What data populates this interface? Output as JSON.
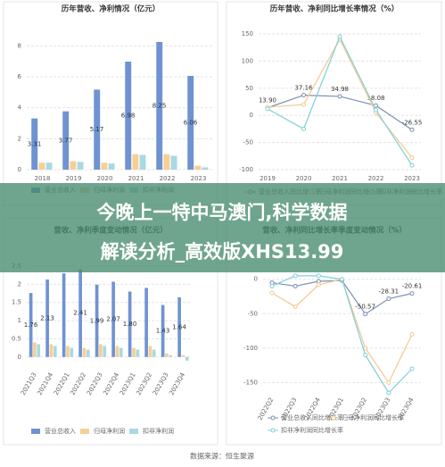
{
  "chart_data": [
    {
      "type": "bar",
      "title": "历年营收、净利情况（亿元）",
      "categories": [
        "2018",
        "2019",
        "2020",
        "2021",
        "2022",
        "2023"
      ],
      "ylim": [
        0,
        9
      ],
      "yticks": [
        0,
        2,
        4,
        6,
        8
      ],
      "grid": true,
      "series": [
        {
          "name": "营业总收入",
          "color": "#6f93d2",
          "values": [
            3.31,
            3.77,
            5.17,
            6.98,
            8.25,
            6.06
          ],
          "value_labels": [
            "3.31",
            "3.77",
            "5.17",
            "6.98",
            "8.25",
            "6.06"
          ]
        },
        {
          "name": "归母净利润",
          "color": "#f6cf95",
          "values": [
            0.45,
            0.55,
            0.45,
            1.0,
            1.0,
            0.25
          ]
        },
        {
          "name": "扣非净利润",
          "color": "#a9d9e2",
          "values": [
            0.45,
            0.5,
            0.4,
            0.95,
            0.9,
            0.15
          ]
        }
      ]
    },
    {
      "type": "line",
      "title": "历年营收、净利同比增长率情况（%）",
      "categories": [
        "2019",
        "2020",
        "2021",
        "2022",
        "2023"
      ],
      "ylim": [
        -100,
        150
      ],
      "yticks": [
        150,
        100,
        50,
        0,
        -50,
        -100
      ],
      "grid": true,
      "series": [
        {
          "name": "营业总收入同比增长率",
          "color": "#7b8fb5",
          "values": [
            13.9,
            37.16,
            34.98,
            18.08,
            -26.55
          ],
          "value_labels": [
            "13.90",
            "37.16",
            "34.98",
            "18.08",
            "-26.55"
          ]
        },
        {
          "name": "归母净利润同比增长率",
          "color": "#f4c98c",
          "values": [
            15,
            20,
            140,
            5,
            -78
          ]
        },
        {
          "name": "扣非净利润同比增长率",
          "color": "#7fcfd8",
          "values": [
            12,
            -25,
            145,
            10,
            -92
          ]
        }
      ]
    },
    {
      "type": "bar",
      "title": "营收、净利季度变动情况（亿元）",
      "categories": [
        "2021Q3",
        "2021Q4",
        "2022Q1",
        "2022Q2",
        "2022Q3",
        "2022Q4",
        "2023Q1",
        "2023Q2",
        "2023Q3",
        "2023Q4"
      ],
      "ylim": [
        -0.3,
        2.5
      ],
      "yticks": [
        0,
        0.5,
        1,
        1.5,
        2,
        2.5
      ],
      "grid": true,
      "series": [
        {
          "name": "营业总收入",
          "color": "#6f93d2",
          "values": [
            1.76,
            2.13,
            2.3,
            2.41,
            1.99,
            2.07,
            1.8,
            1.9,
            1.43,
            1.64
          ],
          "value_labels": [
            "1.76",
            "2.13",
            null,
            "2.41",
            "1.99",
            "2.07",
            "1.80",
            null,
            "1.43",
            "1.64"
          ]
        },
        {
          "name": "归母净利润",
          "color": "#f6cf95",
          "values": [
            0.4,
            0.35,
            0.3,
            0.25,
            0.35,
            0.3,
            0.25,
            0.3,
            0.1,
            0.05
          ]
        },
        {
          "name": "扣非净利润",
          "color": "#a9d9e2",
          "values": [
            0.35,
            0.3,
            0.25,
            0.2,
            0.3,
            0.25,
            0.2,
            0.2,
            0.05,
            -0.1
          ]
        }
      ]
    },
    {
      "type": "line",
      "title": "营收、净利同比增长率季度变动情况（%）",
      "categories": [
        "2022Q2",
        "2022Q3",
        "2022Q4",
        "2023Q1",
        "2023Q2",
        "2023Q3",
        "2023Q4"
      ],
      "ylim": [
        -165,
        10
      ],
      "yticks": [
        0,
        -50,
        -100,
        -150
      ],
      "grid": true,
      "series": [
        {
          "name": "营业总收入同比增长率",
          "color": "#7b8fb5",
          "values": [
            -5,
            -10,
            -3,
            -2,
            -50.57,
            -28.31,
            -20.61
          ],
          "value_labels": [
            null,
            null,
            null,
            null,
            "-50.57",
            "-28.31",
            "-20.61"
          ]
        },
        {
          "name": "归母净利润同比增长率",
          "color": "#f4c98c",
          "values": [
            -20,
            -40,
            -8,
            0,
            -100,
            -150,
            -80
          ]
        },
        {
          "name": "扣非净利润同比增长率",
          "color": "#7fcfd8",
          "values": [
            -10,
            5,
            5,
            0,
            -110,
            -165,
            -130
          ]
        }
      ]
    }
  ],
  "overlay": [
    "今晚上一特中马澳门,科学数据",
    "解读分析_高效版XHS13.99"
  ],
  "source": "数据来源：恒生聚源"
}
